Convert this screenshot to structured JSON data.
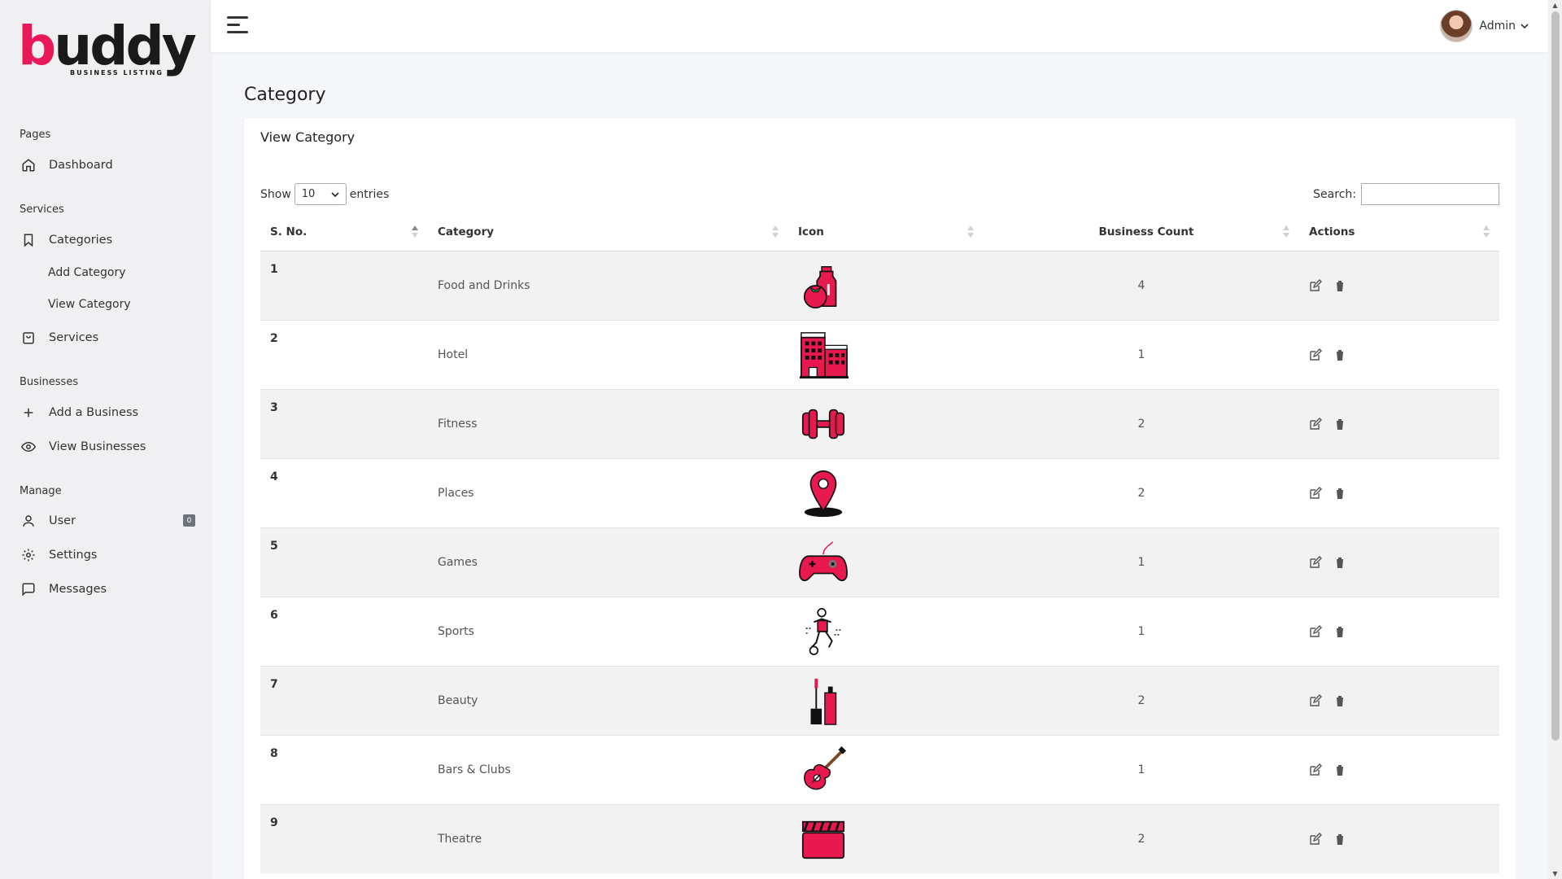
{
  "brand": {
    "logo_text_b": "b",
    "logo_text_rest": "uddy",
    "logo_sub": "BUSINESS LISTING"
  },
  "sidebar": {
    "sections": [
      "Pages",
      "Services",
      "Businesses",
      "Manage"
    ],
    "items": {
      "dashboard": "Dashboard",
      "categories": "Categories",
      "add_category": "Add Category",
      "view_category": "View Category",
      "services": "Services",
      "add_business": "Add a Business",
      "view_businesses": "View Businesses",
      "user": "User",
      "user_badge": "0",
      "settings": "Settings",
      "messages": "Messages"
    }
  },
  "topbar": {
    "user_name": "Admin"
  },
  "main": {
    "page_title": "Category",
    "card_title": "View Category",
    "show_label": "Show",
    "entries_value": "10",
    "entries_label": "entries",
    "search_label": "Search:",
    "search_value": ""
  },
  "table": {
    "headers": [
      "S. No.",
      "Category",
      "Icon",
      "Business Count",
      "Actions"
    ],
    "rows": [
      {
        "sno": "1",
        "category": "Food and Drinks",
        "icon": "food-drinks-icon",
        "count": "4"
      },
      {
        "sno": "2",
        "category": "Hotel",
        "icon": "hotel-icon",
        "count": "1"
      },
      {
        "sno": "3",
        "category": "Fitness",
        "icon": "dumbbell-icon",
        "count": "2"
      },
      {
        "sno": "4",
        "category": "Places",
        "icon": "map-pin-icon",
        "count": "2"
      },
      {
        "sno": "5",
        "category": "Games",
        "icon": "gamepad-icon",
        "count": "1"
      },
      {
        "sno": "6",
        "category": "Sports",
        "icon": "football-player-icon",
        "count": "1"
      },
      {
        "sno": "7",
        "category": "Beauty",
        "icon": "lipstick-icon",
        "count": "2"
      },
      {
        "sno": "8",
        "category": "Bars & Clubs",
        "icon": "guitar-icon",
        "count": "1"
      },
      {
        "sno": "9",
        "category": "Theatre",
        "icon": "clapperboard-icon",
        "count": "2"
      }
    ]
  },
  "colors": {
    "accent": "#e81859",
    "icon_red": "#e8194e",
    "sidebar_bg": "#f0f0f2",
    "row_stripe": "#f2f2f2"
  }
}
